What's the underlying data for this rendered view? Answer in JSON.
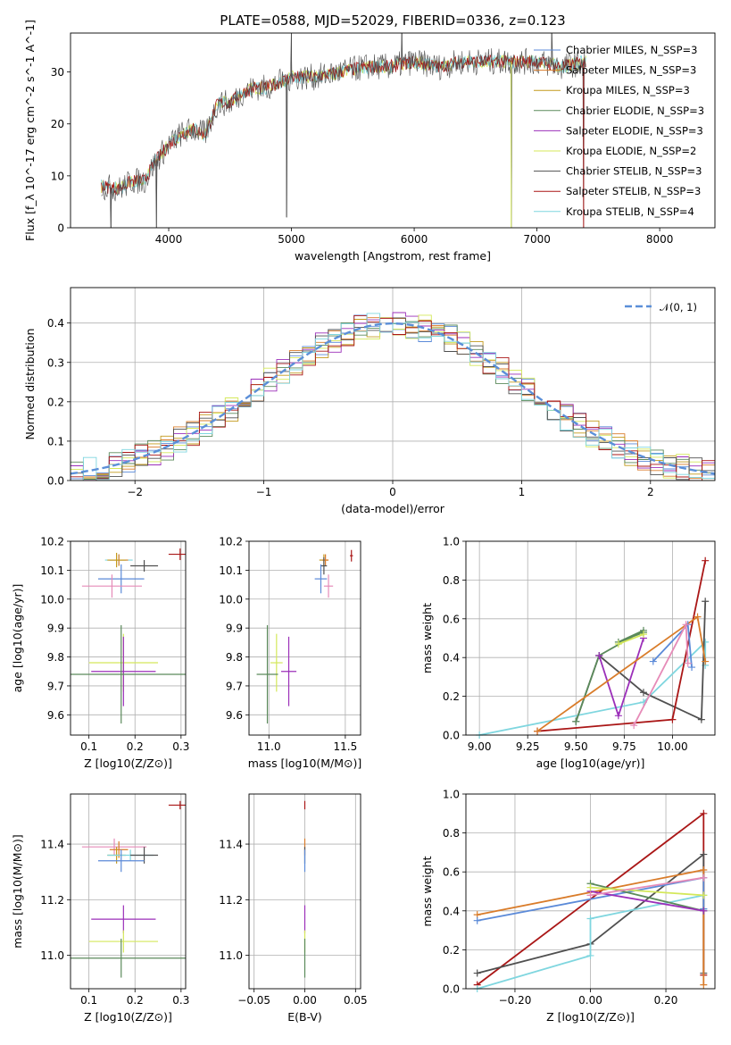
{
  "colors": {
    "chabrier_miles": "#5b8ad8",
    "salpeter_miles": "#d97c2a",
    "kroupa_miles": "#c49a1c",
    "chabrier_elodie": "#5b8a5b",
    "salpeter_elodie": "#9b2fb9",
    "kroupa_elodie": "#d4e85a",
    "chabrier_stelib": "#505050",
    "salpeter_stelib": "#aa1717",
    "kroupa_stelib": "#7fd6df",
    "pink": "#e68bb8",
    "gaussian": "#5b8fd8"
  },
  "chart_data": [
    {
      "id": "spectrum",
      "type": "line",
      "title": "PLATE=0588, MJD=52029, FIBERID=0336, z=0.123",
      "xlabel": "wavelength [Angstrom, rest frame]",
      "ylabel": "Flux [f_λ 10^-17 erg cm^-2 s^-1 A^-1]",
      "xlim": [
        3200,
        8450
      ],
      "ylim": [
        0,
        37.5
      ],
      "xticks": [
        4000,
        5000,
        6000,
        7000,
        8000
      ],
      "yticks": [
        0,
        10,
        20,
        30
      ],
      "legend": "top-right",
      "legend_entries": [
        "Chabrier MILES, N_SSP=3",
        "Salpeter MILES, N_SSP=3",
        "Kroupa MILES, N_SSP=3",
        "Chabrier ELODIE, N_SSP=3",
        "Salpeter ELODIE, N_SSP=3",
        "Kroupa ELODIE, N_SSP=2",
        "Chabrier STELIB, N_SSP=3",
        "Salpeter STELIB, N_SSP=3",
        "Kroupa STELIB, N_SSP=4"
      ],
      "continuum": {
        "x": [
          3450,
          3600,
          3700,
          3800,
          3900,
          4000,
          4100,
          4200,
          4300,
          4400,
          4500,
          4600,
          4700,
          4800,
          4900,
          5000,
          5200,
          5400,
          5600,
          5800,
          6000,
          6200,
          6400,
          6600,
          6800,
          7000,
          7200,
          7400
        ],
        "y": [
          8,
          7.5,
          9,
          9,
          13,
          16,
          18,
          19,
          18,
          24,
          24,
          26,
          27,
          27,
          28,
          29,
          29,
          30,
          31,
          31,
          32,
          31,
          32,
          32,
          32,
          32,
          31,
          32
        ]
      },
      "spikes": [
        {
          "x": 3530,
          "y": 0
        },
        {
          "x": 3900,
          "y": 0
        },
        {
          "x": 4960,
          "y": 2
        },
        {
          "x": 5000,
          "y": 37.5
        },
        {
          "x": 5900,
          "y": 37.5
        },
        {
          "x": 6790,
          "y": 0
        },
        {
          "x": 7120,
          "y": 37.5
        },
        {
          "x": 7380,
          "y": 0
        }
      ]
    },
    {
      "id": "residuals",
      "type": "line",
      "xlabel": "(data-model)/error",
      "ylabel": "Normed distribution",
      "xlim": [
        -2.5,
        2.5
      ],
      "ylim": [
        0,
        0.49
      ],
      "xticks": [
        -2,
        -1,
        0,
        1,
        2
      ],
      "yticks": [
        0.0,
        0.1,
        0.2,
        0.3,
        0.4
      ],
      "grid": true,
      "legend": "top-right",
      "legend_entries": [
        "𝒩(0, 1)"
      ],
      "gaussian": {
        "mean": 0,
        "sigma": 1
      }
    },
    {
      "id": "age_vs_Z",
      "type": "scatter",
      "xlabel": "Z [log10(Z/Z⊙)]",
      "ylabel": "age  [log10(age/yr)]",
      "xlim": [
        0.06,
        0.31
      ],
      "ylim": [
        9.53,
        10.2
      ],
      "xticks": [
        0.1,
        0.2,
        0.3
      ],
      "yticks": [
        9.6,
        9.7,
        9.8,
        9.9,
        10.0,
        10.1,
        10.2
      ],
      "grid": true,
      "points": [
        {
          "x": 0.165,
          "y": 10.135,
          "xerr": 0.03,
          "yerr": 0.02,
          "color": "kroupa_stelib"
        },
        {
          "x": 0.165,
          "y": 10.135,
          "xerr": 0.02,
          "yerr": 0.02,
          "color": "salpeter_miles"
        },
        {
          "x": 0.16,
          "y": 10.135,
          "xerr": 0.02,
          "yerr": 0.025,
          "color": "kroupa_miles"
        },
        {
          "x": 0.22,
          "y": 10.115,
          "xerr": 0.03,
          "yerr": 0.02,
          "color": "chabrier_stelib"
        },
        {
          "x": 0.17,
          "y": 10.07,
          "xerr": 0.05,
          "yerr": 0.05,
          "color": "chabrier_miles"
        },
        {
          "x": 0.15,
          "y": 10.045,
          "xerr": 0.065,
          "yerr": 0.04,
          "color": "pink"
        },
        {
          "x": 0.298,
          "y": 10.155,
          "xerr": 0.025,
          "yerr": 0.02,
          "color": "salpeter_stelib"
        },
        {
          "x": 0.175,
          "y": 9.78,
          "xerr": 0.075,
          "yerr": 0.1,
          "color": "kroupa_elodie"
        },
        {
          "x": 0.175,
          "y": 9.75,
          "xerr": 0.07,
          "yerr": 0.12,
          "color": "salpeter_elodie"
        },
        {
          "x": 0.17,
          "y": 9.74,
          "xerr": 0.14,
          "yerr": 0.17,
          "color": "chabrier_elodie"
        }
      ]
    },
    {
      "id": "age_vs_mass",
      "type": "scatter",
      "xlabel": "mass [log10(M/M⊙)]",
      "xlim": [
        10.87,
        11.6
      ],
      "ylim": [
        9.53,
        10.2
      ],
      "xticks": [
        11.0,
        11.5
      ],
      "yticks": [
        9.6,
        9.7,
        9.8,
        9.9,
        10.0,
        10.1,
        10.2
      ],
      "grid": true,
      "points": [
        {
          "x": 11.36,
          "y": 10.135,
          "xerr": 0.03,
          "yerr": 0.02,
          "color": "kroupa_miles"
        },
        {
          "x": 11.37,
          "y": 10.135,
          "xerr": 0.02,
          "yerr": 0.02,
          "color": "salpeter_miles"
        },
        {
          "x": 11.36,
          "y": 10.115,
          "xerr": 0.02,
          "yerr": 0.03,
          "color": "chabrier_stelib"
        },
        {
          "x": 11.34,
          "y": 10.07,
          "xerr": 0.04,
          "yerr": 0.05,
          "color": "chabrier_miles"
        },
        {
          "x": 11.39,
          "y": 10.045,
          "xerr": 0.03,
          "yerr": 0.04,
          "color": "pink"
        },
        {
          "x": 11.54,
          "y": 10.15,
          "xerr": 0.01,
          "yerr": 0.02,
          "color": "salpeter_stelib"
        },
        {
          "x": 11.05,
          "y": 9.78,
          "xerr": 0.04,
          "yerr": 0.1,
          "color": "kroupa_elodie"
        },
        {
          "x": 11.13,
          "y": 9.75,
          "xerr": 0.05,
          "yerr": 0.12,
          "color": "salpeter_elodie"
        },
        {
          "x": 10.99,
          "y": 9.74,
          "xerr": 0.07,
          "yerr": 0.17,
          "color": "chabrier_elodie"
        }
      ]
    },
    {
      "id": "mass_weight_vs_age",
      "type": "line",
      "xlabel": "age  [log10(age/yr)]",
      "ylabel": "mass weight",
      "xlim": [
        8.93,
        10.22
      ],
      "ylim": [
        0,
        1
      ],
      "xticks": [
        9.0,
        9.25,
        9.5,
        9.75,
        10.0
      ],
      "yticks": [
        0.0,
        0.2,
        0.4,
        0.6,
        0.8,
        1.0
      ],
      "grid": true,
      "series": [
        {
          "color": "kroupa_stelib",
          "x": [
            9.0,
            9.85,
            10.17,
            10.17
          ],
          "y": [
            0.0,
            0.17,
            0.48,
            0.36
          ]
        },
        {
          "color": "chabrier_stelib",
          "x": [
            9.5,
            9.62,
            9.85,
            10.15,
            10.17
          ],
          "y": [
            0.07,
            0.41,
            0.22,
            0.08,
            0.69
          ]
        },
        {
          "color": "salpeter_stelib",
          "x": [
            9.3,
            10.0,
            10.17
          ],
          "y": [
            0.02,
            0.08,
            0.9
          ]
        },
        {
          "color": "chabrier_elodie",
          "x": [
            9.5,
            9.62,
            9.85,
            9.72,
            9.85
          ],
          "y": [
            0.07,
            0.41,
            0.54,
            0.48,
            0.53
          ]
        },
        {
          "color": "salpeter_elodie",
          "x": [
            9.62,
            9.72,
            9.85
          ],
          "y": [
            0.41,
            0.1,
            0.5
          ]
        },
        {
          "color": "kroupa_elodie",
          "x": [
            9.72,
            9.85
          ],
          "y": [
            0.47,
            0.52
          ]
        },
        {
          "color": "salpeter_miles",
          "x": [
            9.3,
            10.13,
            10.17
          ],
          "y": [
            0.02,
            0.61,
            0.38
          ]
        },
        {
          "color": "chabrier_miles",
          "x": [
            9.9,
            10.08,
            10.1
          ],
          "y": [
            0.38,
            0.57,
            0.35
          ]
        },
        {
          "color": "pink",
          "x": [
            9.8,
            10.07,
            10.08
          ],
          "y": [
            0.05,
            0.57,
            0.37
          ]
        }
      ]
    },
    {
      "id": "mass_vs_Z",
      "type": "scatter",
      "xlabel": "Z [log10(Z/Z⊙)]",
      "ylabel": "mass [log10(M/M⊙)]",
      "xlim": [
        0.06,
        0.31
      ],
      "ylim": [
        10.88,
        11.58
      ],
      "xticks": [
        0.1,
        0.2,
        0.3
      ],
      "yticks": [
        11.0,
        11.2,
        11.4
      ],
      "grid": true,
      "points": [
        {
          "x": 0.298,
          "y": 11.54,
          "xerr": 0.025,
          "yerr": 0.015,
          "color": "salpeter_stelib"
        },
        {
          "x": 0.155,
          "y": 11.39,
          "xerr": 0.07,
          "yerr": 0.03,
          "color": "pink"
        },
        {
          "x": 0.165,
          "y": 11.38,
          "xerr": 0.02,
          "yerr": 0.03,
          "color": "salpeter_miles"
        },
        {
          "x": 0.16,
          "y": 11.36,
          "xerr": 0.02,
          "yerr": 0.03,
          "color": "kroupa_miles"
        },
        {
          "x": 0.19,
          "y": 11.36,
          "xerr": 0.05,
          "yerr": 0.02,
          "color": "kroupa_stelib"
        },
        {
          "x": 0.22,
          "y": 11.36,
          "xerr": 0.03,
          "yerr": 0.03,
          "color": "chabrier_stelib"
        },
        {
          "x": 0.17,
          "y": 11.34,
          "xerr": 0.05,
          "yerr": 0.04,
          "color": "chabrier_miles"
        },
        {
          "x": 0.175,
          "y": 11.13,
          "xerr": 0.07,
          "yerr": 0.05,
          "color": "salpeter_elodie"
        },
        {
          "x": 0.175,
          "y": 11.05,
          "xerr": 0.075,
          "yerr": 0.04,
          "color": "kroupa_elodie"
        },
        {
          "x": 0.17,
          "y": 10.99,
          "xerr": 0.14,
          "yerr": 0.07,
          "color": "chabrier_elodie"
        }
      ]
    },
    {
      "id": "mass_vs_ebv",
      "type": "scatter",
      "xlabel": "E(B-V)",
      "xlim": [
        -0.055,
        0.055
      ],
      "ylim": [
        10.88,
        11.58
      ],
      "xticks": [
        -0.05,
        0.0,
        0.05
      ],
      "yticks": [
        11.0,
        11.2,
        11.4
      ],
      "grid": true,
      "points": [
        {
          "x": 0,
          "y": 11.54,
          "xerr": 0,
          "yerr": 0.015,
          "color": "salpeter_stelib"
        },
        {
          "x": 0,
          "y": 11.39,
          "xerr": 0,
          "yerr": 0.03,
          "color": "salpeter_miles"
        },
        {
          "x": 0,
          "y": 11.36,
          "xerr": 0,
          "yerr": 0.03,
          "color": "chabrier_stelib"
        },
        {
          "x": 0,
          "y": 11.34,
          "xerr": 0,
          "yerr": 0.04,
          "color": "chabrier_miles"
        },
        {
          "x": 0,
          "y": 11.13,
          "xerr": 0,
          "yerr": 0.05,
          "color": "salpeter_elodie"
        },
        {
          "x": 0,
          "y": 11.05,
          "xerr": 0,
          "yerr": 0.04,
          "color": "kroupa_elodie"
        },
        {
          "x": 0,
          "y": 10.99,
          "xerr": 0,
          "yerr": 0.07,
          "color": "chabrier_elodie"
        }
      ]
    },
    {
      "id": "mass_weight_vs_Z",
      "type": "line",
      "xlabel": "Z [log10(Z/Z⊙)]",
      "ylabel": "mass weight",
      "xlim": [
        -0.33,
        0.33
      ],
      "ylim": [
        0,
        1
      ],
      "xticks": [
        -0.2,
        0.0,
        0.2
      ],
      "yticks": [
        0.0,
        0.2,
        0.4,
        0.6,
        0.8,
        1.0
      ],
      "grid": true,
      "series": [
        {
          "color": "salpeter_stelib",
          "x": [
            -0.3,
            0.3,
            0.3
          ],
          "y": [
            0.02,
            0.9,
            0.07
          ]
        },
        {
          "color": "chabrier_stelib",
          "x": [
            -0.3,
            0.0,
            0.3,
            0.3
          ],
          "y": [
            0.08,
            0.23,
            0.69,
            0.08
          ]
        },
        {
          "color": "kroupa_stelib",
          "x": [
            -0.3,
            0.0,
            0.0,
            0.3,
            0.3
          ],
          "y": [
            0.0,
            0.17,
            0.36,
            0.48,
            0.41
          ]
        },
        {
          "color": "salpeter_miles",
          "x": [
            -0.3,
            0.3,
            0.3
          ],
          "y": [
            0.38,
            0.61,
            0.02
          ]
        },
        {
          "color": "chabrier_miles",
          "x": [
            -0.3,
            0.3,
            0.3
          ],
          "y": [
            0.35,
            0.57,
            0.41
          ]
        },
        {
          "color": "chabrier_elodie",
          "x": [
            0.0,
            0.3
          ],
          "y": [
            0.54,
            0.4
          ]
        },
        {
          "color": "salpeter_elodie",
          "x": [
            0.0,
            0.3
          ],
          "y": [
            0.5,
            0.4
          ]
        },
        {
          "color": "kroupa_elodie",
          "x": [
            0.0,
            0.3
          ],
          "y": [
            0.52,
            0.48
          ]
        },
        {
          "color": "pink",
          "x": [
            0.0,
            0.3
          ],
          "y": [
            0.48,
            0.57
          ]
        }
      ]
    }
  ]
}
